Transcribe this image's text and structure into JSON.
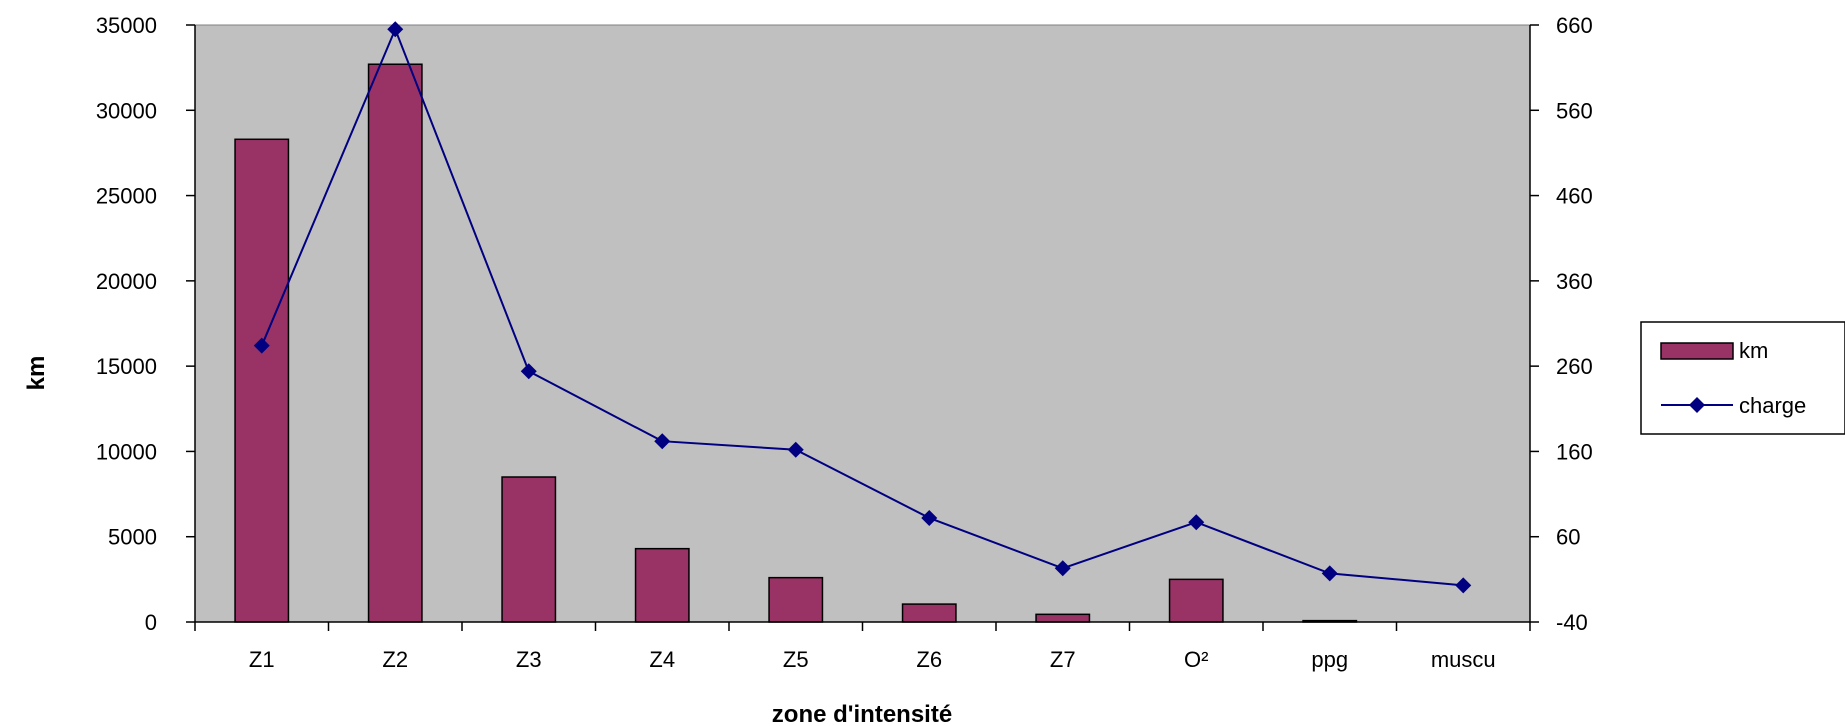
{
  "chart_data": {
    "type": "bar",
    "title": "",
    "xlabel": "zone d'intensité",
    "ylabel": "km",
    "ylabel_right": "",
    "categories": [
      "Z1",
      "Z2",
      "Z3",
      "Z4",
      "Z5",
      "Z6",
      "Z7",
      "O²",
      "ppg",
      "muscu"
    ],
    "ylim": [
      0,
      35000
    ],
    "yticks": [
      "0",
      "5000",
      "10000",
      "15000",
      "20000",
      "25000",
      "30000",
      "35000"
    ],
    "ylim_right": [
      -40,
      660
    ],
    "yticks_right": [
      "-40",
      "60",
      "160",
      "260",
      "360",
      "460",
      "560",
      "660"
    ],
    "series": [
      {
        "name": "km",
        "type": "bar",
        "axis": "left",
        "color": "#993366",
        "values": [
          28300,
          32700,
          8500,
          4300,
          2600,
          1050,
          450,
          2500,
          80,
          0
        ]
      },
      {
        "name": "charge",
        "type": "line",
        "axis": "right",
        "color": "#000080",
        "values": [
          284,
          655,
          254,
          172,
          162,
          82,
          23,
          77,
          17,
          3
        ]
      }
    ],
    "plot_background": "#c0c0c0",
    "grid": false,
    "legend_position": "right"
  }
}
